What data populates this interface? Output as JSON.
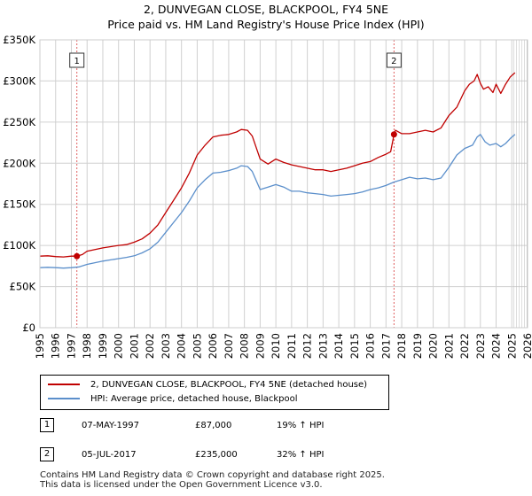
{
  "title_line1": "2, DUNVEGAN CLOSE, BLACKPOOL, FY4 5NE",
  "title_line2": "Price paid vs. HM Land Registry's House Price Index (HPI)",
  "colors": {
    "property": "#c00000",
    "hpi": "#5b8fcb",
    "grid": "#d0d0d0",
    "marker_line": "#e06060"
  },
  "chart_data": {
    "type": "line",
    "ylim": [
      0,
      350000
    ],
    "xlim": [
      1995,
      2026
    ],
    "y_ticks": [
      "£0",
      "£50K",
      "£100K",
      "£150K",
      "£200K",
      "£250K",
      "£300K",
      "£350K"
    ],
    "x_ticks": [
      "1995",
      "1996",
      "1997",
      "1998",
      "1999",
      "2000",
      "2001",
      "2002",
      "2003",
      "2004",
      "2005",
      "2006",
      "2007",
      "2008",
      "2009",
      "2010",
      "2011",
      "2012",
      "2013",
      "2014",
      "2015",
      "2016",
      "2017",
      "2018",
      "2019",
      "2020",
      "2021",
      "2022",
      "2023",
      "2024",
      "2025",
      "2026"
    ],
    "forecast_from": 2025.0,
    "series": [
      {
        "name": "2, DUNVEGAN CLOSE, BLACKPOOL, FY4 5NE (detached house)",
        "x": [
          1995.0,
          1995.5,
          1996.0,
          1996.5,
          1997.0,
          1997.35,
          1997.7,
          1998.0,
          1998.5,
          1999.0,
          1999.5,
          2000.0,
          2000.5,
          2001.0,
          2001.5,
          2002.0,
          2002.5,
          2003.0,
          2003.5,
          2004.0,
          2004.5,
          2005.0,
          2005.5,
          2006.0,
          2006.5,
          2007.0,
          2007.5,
          2007.8,
          2008.2,
          2008.5,
          2009.0,
          2009.5,
          2010.0,
          2010.5,
          2011.0,
          2011.5,
          2012.0,
          2012.5,
          2013.0,
          2013.5,
          2014.0,
          2014.5,
          2015.0,
          2015.5,
          2016.0,
          2016.5,
          2017.0,
          2017.3,
          2017.51,
          2017.6,
          2018.0,
          2018.5,
          2019.0,
          2019.5,
          2020.0,
          2020.5,
          2021.0,
          2021.5,
          2022.0,
          2022.3,
          2022.6,
          2022.8,
          2023.0,
          2023.2,
          2023.5,
          2023.8,
          2024.0,
          2024.3,
          2024.6,
          2024.9,
          2025.2
        ],
        "values": [
          87000,
          87500,
          86500,
          86000,
          87000,
          87000,
          89000,
          93000,
          95000,
          97000,
          98500,
          100000,
          101000,
          104000,
          108000,
          115000,
          125000,
          140000,
          155000,
          170000,
          188000,
          210000,
          222000,
          232000,
          234000,
          235000,
          238000,
          241000,
          240000,
          233000,
          205000,
          199000,
          205000,
          201000,
          198000,
          196000,
          194000,
          192000,
          192000,
          190000,
          192000,
          194000,
          197000,
          200000,
          202000,
          207000,
          211000,
          214000,
          235000,
          240000,
          236000,
          236000,
          238000,
          240000,
          238000,
          243000,
          258000,
          268000,
          288000,
          296000,
          300000,
          308000,
          297000,
          290000,
          293000,
          286000,
          296000,
          285000,
          296000,
          305000,
          310000
        ]
      },
      {
        "name": "HPI: Average price, detached house, Blackpool",
        "x": [
          1995.0,
          1995.5,
          1996.0,
          1996.5,
          1997.0,
          1997.5,
          1998.0,
          1998.5,
          1999.0,
          1999.5,
          2000.0,
          2000.5,
          2001.0,
          2001.5,
          2002.0,
          2002.5,
          2003.0,
          2003.5,
          2004.0,
          2004.5,
          2005.0,
          2005.5,
          2006.0,
          2006.5,
          2007.0,
          2007.5,
          2007.8,
          2008.2,
          2008.5,
          2009.0,
          2009.5,
          2010.0,
          2010.5,
          2011.0,
          2011.5,
          2012.0,
          2012.5,
          2013.0,
          2013.5,
          2014.0,
          2014.5,
          2015.0,
          2015.5,
          2016.0,
          2016.5,
          2017.0,
          2017.5,
          2018.0,
          2018.5,
          2019.0,
          2019.5,
          2020.0,
          2020.5,
          2021.0,
          2021.5,
          2022.0,
          2022.5,
          2022.8,
          2023.0,
          2023.3,
          2023.6,
          2024.0,
          2024.3,
          2024.6,
          2024.9,
          2025.2
        ],
        "values": [
          73000,
          73500,
          73000,
          72500,
          73000,
          74000,
          77000,
          79000,
          81000,
          82500,
          84000,
          85500,
          87500,
          91000,
          96000,
          104000,
          116000,
          128000,
          140000,
          154000,
          170000,
          180000,
          188000,
          189000,
          191000,
          194000,
          197000,
          196000,
          190000,
          168000,
          171000,
          174000,
          171000,
          166000,
          166000,
          164000,
          163000,
          162000,
          160000,
          161000,
          162000,
          163000,
          165000,
          168000,
          170000,
          173000,
          177000,
          180000,
          183000,
          181000,
          182000,
          180000,
          182000,
          195000,
          210000,
          218000,
          222000,
          232000,
          235000,
          226000,
          222000,
          224000,
          220000,
          224000,
          230000,
          235000
        ]
      }
    ],
    "annotations": [
      {
        "label": "1",
        "x": 1997.35,
        "y": 87000
      },
      {
        "label": "2",
        "x": 2017.51,
        "y": 235000
      }
    ]
  },
  "legend": {
    "property": "2, DUNVEGAN CLOSE, BLACKPOOL, FY4 5NE (detached house)",
    "hpi": "HPI: Average price, detached house, Blackpool"
  },
  "transactions": [
    {
      "num": "1",
      "date": "07-MAY-1997",
      "price": "£87,000",
      "hpi": "19% ↑ HPI"
    },
    {
      "num": "2",
      "date": "05-JUL-2017",
      "price": "£235,000",
      "hpi": "32% ↑ HPI"
    }
  ],
  "footer_line1": "Contains HM Land Registry data © Crown copyright and database right 2025.",
  "footer_line2": "This data is licensed under the Open Government Licence v3.0."
}
